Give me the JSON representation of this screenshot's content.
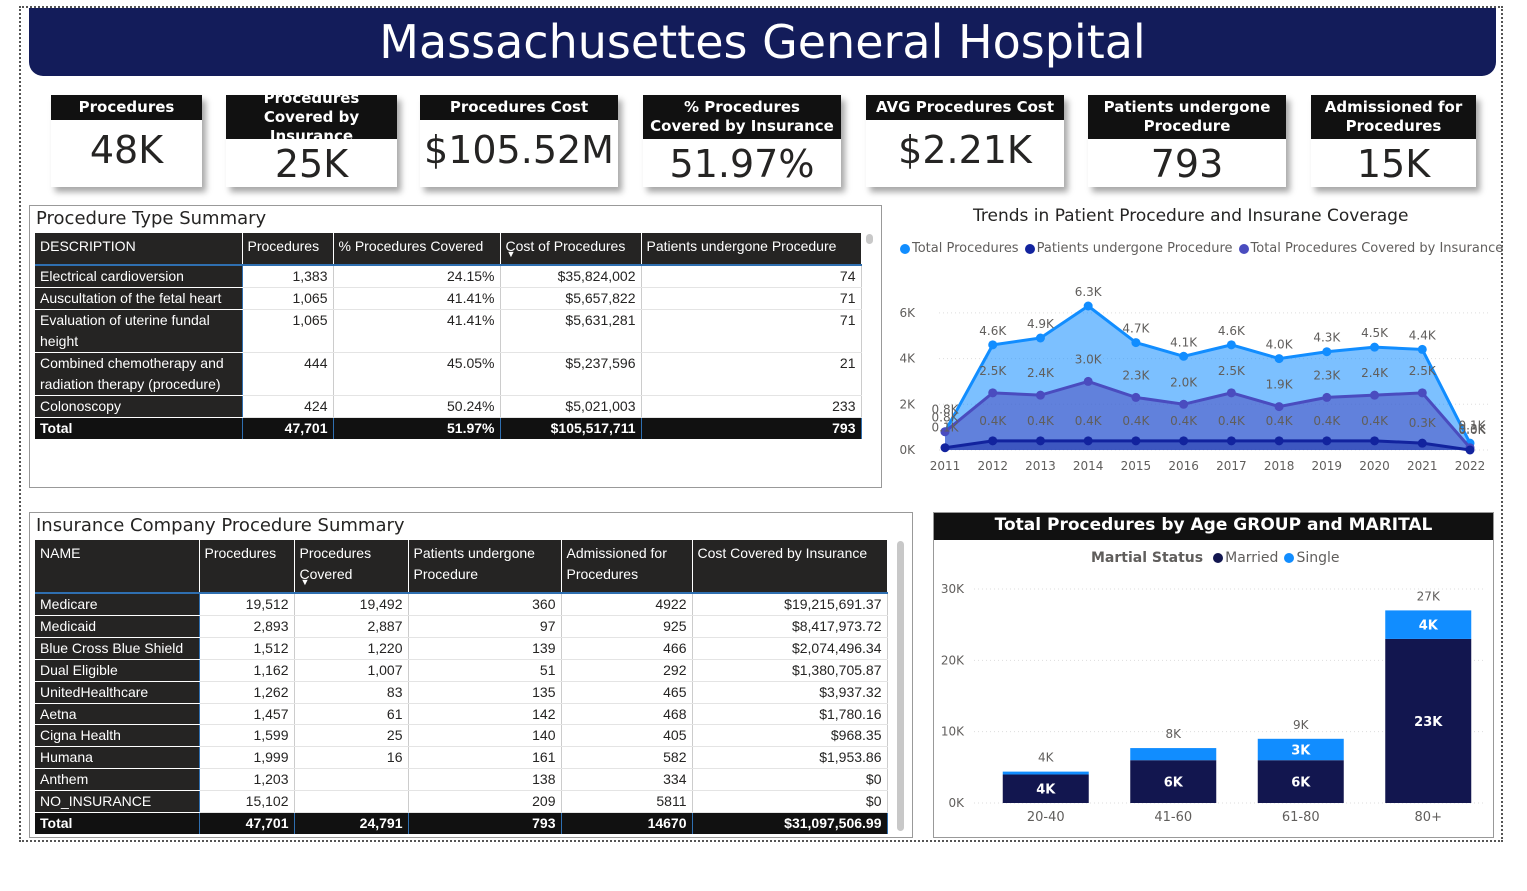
{
  "title": "Massachusettes General Hospital",
  "kpis": [
    {
      "label": "Procedures",
      "value": "48K"
    },
    {
      "label": "Procedures Covered by Insurance",
      "value": "25K"
    },
    {
      "label": "Procedures Cost",
      "value": "$105.52M"
    },
    {
      "label": "% Procedures Covered by Insurance",
      "value": "51.97%"
    },
    {
      "label": "AVG Procedures Cost",
      "value": "$2.21K"
    },
    {
      "label": "Patients undergone Procedure",
      "value": "793"
    },
    {
      "label": "Admissioned for Procedures",
      "value": "15K"
    }
  ],
  "procedure_summary": {
    "title": "Procedure Type Summary",
    "columns": [
      "DESCRIPTION",
      "Procedures",
      "% Procedures Covered",
      "Cost of Procedures",
      "Patients undergone Procedure"
    ],
    "rows": [
      [
        "Electrical cardioversion",
        "1,383",
        "24.15%",
        "$35,824,002",
        "74"
      ],
      [
        "Auscultation of the fetal heart",
        "1,065",
        "41.41%",
        "$5,657,822",
        "71"
      ],
      [
        "Evaluation of uterine fundal height",
        "1,065",
        "41.41%",
        "$5,631,281",
        "71"
      ],
      [
        "Combined chemotherapy and radiation therapy (procedure)",
        "444",
        "45.05%",
        "$5,237,596",
        "21"
      ],
      [
        "Colonoscopy",
        "424",
        "50.24%",
        "$5,021,003",
        "233"
      ]
    ],
    "total": [
      "Total",
      "47,701",
      "51.97%",
      "$105,517,711",
      "793"
    ]
  },
  "insurance_summary": {
    "title": "Insurance Company Procedure Summary",
    "columns": [
      "NAME",
      "Procedures",
      "Procedures Covered",
      "Patients undergone Procedure",
      "Admissioned for Procedures",
      "Cost Covered by Insurance"
    ],
    "rows": [
      [
        "Medicare",
        "19,512",
        "19,492",
        "360",
        "4922",
        "$19,215,691.37"
      ],
      [
        "Medicaid",
        "2,893",
        "2,887",
        "97",
        "925",
        "$8,417,973.72"
      ],
      [
        "Blue Cross Blue Shield",
        "1,512",
        "1,220",
        "139",
        "466",
        "$2,074,496.34"
      ],
      [
        "Dual Eligible",
        "1,162",
        "1,007",
        "51",
        "292",
        "$1,380,705.87"
      ],
      [
        "UnitedHealthcare",
        "1,262",
        "83",
        "135",
        "465",
        "$3,937.32"
      ],
      [
        "Aetna",
        "1,457",
        "61",
        "142",
        "468",
        "$1,780.16"
      ],
      [
        "Cigna Health",
        "1,599",
        "25",
        "140",
        "405",
        "$968.35"
      ],
      [
        "Humana",
        "1,999",
        "16",
        "161",
        "582",
        "$1,953.86"
      ],
      [
        "Anthem",
        "1,203",
        "",
        "138",
        "334",
        "$0"
      ],
      [
        "NO_INSURANCE",
        "15,102",
        "",
        "209",
        "5811",
        "$0"
      ]
    ],
    "total": [
      "Total",
      "47,701",
      "24,791",
      "793",
      "14670",
      "$31,097,506.99"
    ]
  },
  "chart_data": [
    {
      "type": "area",
      "title": "Trends in Patient Procedure and Insurane Coverage",
      "x": [
        "2011",
        "2012",
        "2013",
        "2014",
        "2015",
        "2016",
        "2017",
        "2018",
        "2019",
        "2020",
        "2021",
        "2022"
      ],
      "yticks": [
        "0K",
        "2K",
        "4K",
        "6K"
      ],
      "ylim": [
        0,
        7000
      ],
      "legend_position": "top",
      "series": [
        {
          "name": "Total Procedures",
          "color": "#118dff",
          "values": [
            800,
            4600,
            4900,
            6300,
            4700,
            4100,
            4600,
            4000,
            4300,
            4500,
            4400,
            300
          ],
          "labels": [
            "0.8K",
            "4.6K",
            "4.9K",
            "6.3K",
            "4.7K",
            "4.1K",
            "4.6K",
            "4.0K",
            "4.3K",
            "4.5K",
            "4.4K",
            "0.3K"
          ]
        },
        {
          "name": "Patients undergone Procedure",
          "color": "#12239e",
          "values": [
            100,
            400,
            400,
            400,
            400,
            400,
            400,
            400,
            400,
            400,
            300,
            0
          ],
          "labels": [
            "0.1K",
            "0.4K",
            "0.4K",
            "0.4K",
            "0.4K",
            "0.4K",
            "0.4K",
            "0.4K",
            "0.4K",
            "0.4K",
            "0.3K",
            "0.0K"
          ]
        },
        {
          "name": "Total Procedures Covered by Insurance",
          "color": "#4a4cbf",
          "values": [
            800,
            2500,
            2400,
            3000,
            2300,
            2000,
            2500,
            1900,
            2300,
            2400,
            2500,
            100
          ],
          "labels": [
            "0.8K",
            "2.5K",
            "2.4K",
            "3.0K",
            "2.3K",
            "2.0K",
            "2.5K",
            "1.9K",
            "2.3K",
            "2.4K",
            "2.5K",
            "0.1K"
          ]
        }
      ]
    },
    {
      "type": "bar",
      "stacked": true,
      "title": "Total Procedures by Age GROUP and MARITAL",
      "legend_title": "Martial Status",
      "categories": [
        "20-40",
        "41-60",
        "61-80",
        "80+"
      ],
      "yticks": [
        "0K",
        "10K",
        "20K",
        "30K"
      ],
      "ylim": [
        0,
        30000
      ],
      "totals": [
        "4K",
        "8K",
        "9K",
        "27K"
      ],
      "series": [
        {
          "name": "Married",
          "color": "#12164f",
          "values": [
            4000,
            6000,
            6000,
            23000
          ],
          "labels": [
            "4K",
            "6K",
            "6K",
            "23K"
          ]
        },
        {
          "name": "Single",
          "color": "#118dff",
          "values": [
            400,
            1700,
            3000,
            4000
          ],
          "labels": [
            "",
            "",
            "3K",
            "4K"
          ]
        }
      ]
    }
  ]
}
